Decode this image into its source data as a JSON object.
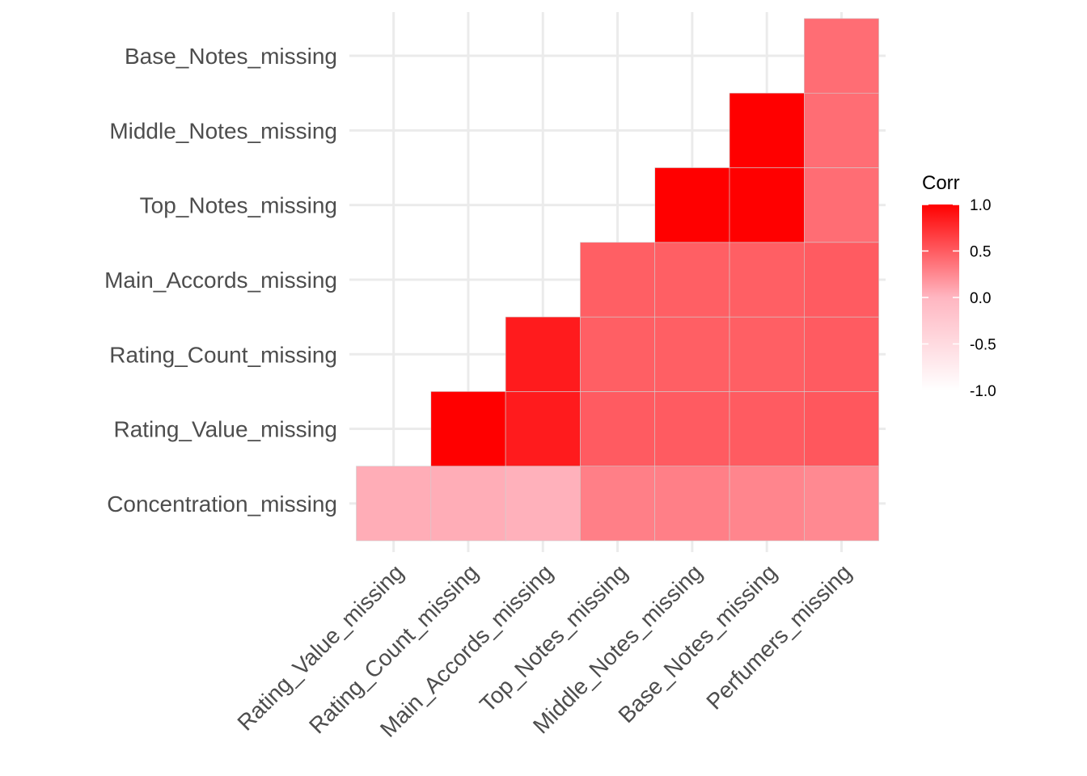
{
  "chart_data": {
    "type": "heatmap",
    "title": "",
    "xlabel": "",
    "ylabel": "",
    "x_categories": [
      "Rating_Value_missing",
      "Rating_Count_missing",
      "Main_Accords_missing",
      "Top_Notes_missing",
      "Middle_Notes_missing",
      "Base_Notes_missing",
      "Perfumers_missing"
    ],
    "y_categories": [
      "Concentration_missing",
      "Rating_Value_missing",
      "Rating_Count_missing",
      "Main_Accords_missing",
      "Top_Notes_missing",
      "Middle_Notes_missing",
      "Base_Notes_missing"
    ],
    "layout": "lower-triangle",
    "cells": [
      {
        "x": "Rating_Value_missing",
        "y": "Concentration_missing",
        "value": 0.05
      },
      {
        "x": "Rating_Count_missing",
        "y": "Concentration_missing",
        "value": 0.05
      },
      {
        "x": "Main_Accords_missing",
        "y": "Concentration_missing",
        "value": 0.03
      },
      {
        "x": "Top_Notes_missing",
        "y": "Concentration_missing",
        "value": 0.3
      },
      {
        "x": "Middle_Notes_missing",
        "y": "Concentration_missing",
        "value": 0.3
      },
      {
        "x": "Base_Notes_missing",
        "y": "Concentration_missing",
        "value": 0.27
      },
      {
        "x": "Perfumers_missing",
        "y": "Concentration_missing",
        "value": 0.25
      },
      {
        "x": "Rating_Count_missing",
        "y": "Rating_Value_missing",
        "value": 1.0
      },
      {
        "x": "Main_Accords_missing",
        "y": "Rating_Value_missing",
        "value": 0.85
      },
      {
        "x": "Top_Notes_missing",
        "y": "Rating_Value_missing",
        "value": 0.5
      },
      {
        "x": "Middle_Notes_missing",
        "y": "Rating_Value_missing",
        "value": 0.5
      },
      {
        "x": "Base_Notes_missing",
        "y": "Rating_Value_missing",
        "value": 0.5
      },
      {
        "x": "Perfumers_missing",
        "y": "Rating_Value_missing",
        "value": 0.52
      },
      {
        "x": "Main_Accords_missing",
        "y": "Rating_Count_missing",
        "value": 0.85
      },
      {
        "x": "Top_Notes_missing",
        "y": "Rating_Count_missing",
        "value": 0.48
      },
      {
        "x": "Middle_Notes_missing",
        "y": "Rating_Count_missing",
        "value": 0.48
      },
      {
        "x": "Base_Notes_missing",
        "y": "Rating_Count_missing",
        "value": 0.48
      },
      {
        "x": "Perfumers_missing",
        "y": "Rating_Count_missing",
        "value": 0.5
      },
      {
        "x": "Top_Notes_missing",
        "y": "Main_Accords_missing",
        "value": 0.48
      },
      {
        "x": "Middle_Notes_missing",
        "y": "Main_Accords_missing",
        "value": 0.48
      },
      {
        "x": "Base_Notes_missing",
        "y": "Main_Accords_missing",
        "value": 0.48
      },
      {
        "x": "Perfumers_missing",
        "y": "Main_Accords_missing",
        "value": 0.5
      },
      {
        "x": "Middle_Notes_missing",
        "y": "Top_Notes_missing",
        "value": 1.0
      },
      {
        "x": "Base_Notes_missing",
        "y": "Top_Notes_missing",
        "value": 1.0
      },
      {
        "x": "Perfumers_missing",
        "y": "Top_Notes_missing",
        "value": 0.4
      },
      {
        "x": "Base_Notes_missing",
        "y": "Middle_Notes_missing",
        "value": 1.0
      },
      {
        "x": "Perfumers_missing",
        "y": "Middle_Notes_missing",
        "value": 0.4
      },
      {
        "x": "Perfumers_missing",
        "y": "Base_Notes_missing",
        "value": 0.4
      }
    ],
    "legend": {
      "title": "Corr",
      "position": "right",
      "range": [
        -1.0,
        1.0
      ],
      "ticks": [
        "1.0",
        "0.5",
        "0.0",
        "-0.5",
        "-1.0"
      ],
      "tick_values": [
        1.0,
        0.5,
        0.0,
        -0.5,
        -1.0
      ],
      "low_color": "#FFFFFF",
      "mid_color": "#FFB6C1",
      "high_color": "#FF0000"
    },
    "grid": true
  }
}
